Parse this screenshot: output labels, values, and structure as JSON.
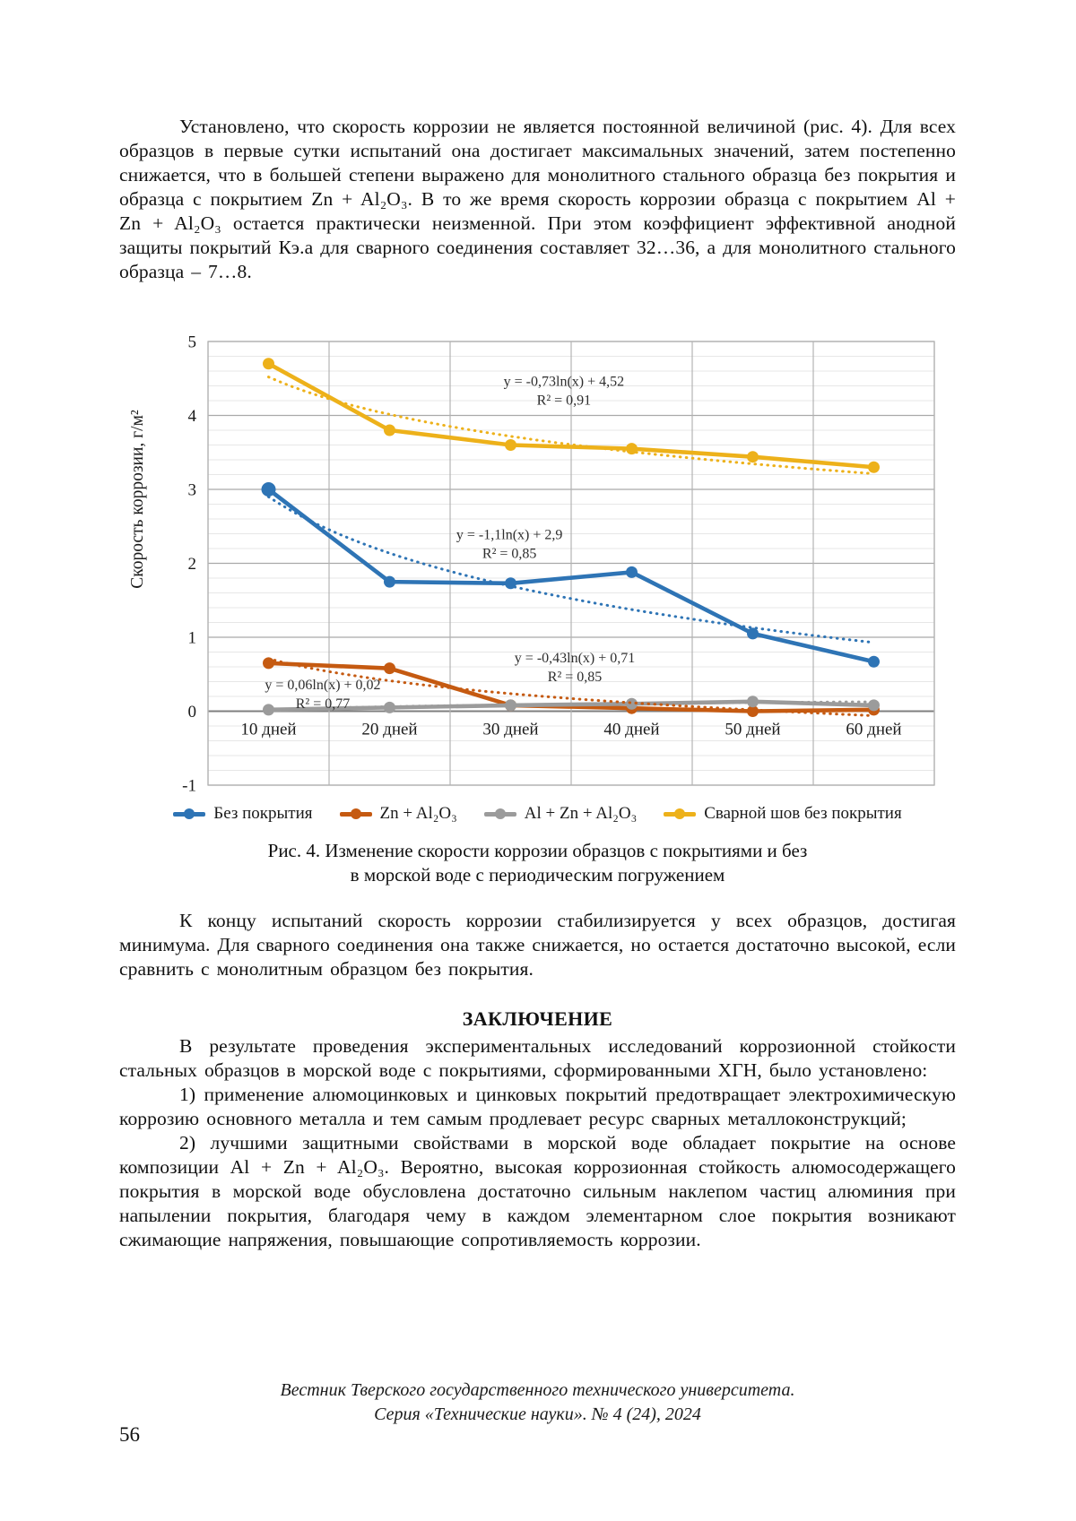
{
  "page": {
    "paragraph_1": "Установлено, что скорость коррозии не является постоянной величиной (рис. 4). Для всех образцов в первые сутки испытаний она достигает максимальных значений, затем постепенно снижается, что в большей степени выражено для монолитного стального образца без покрытия и образца с покрытием Zn + Al₂O₃. В то же время скорость коррозии образца с покрытием Al + Zn + Al₂O₃ остается практически неизменной. При этом коэффициент эффективной анодной защиты покрытий Кэ.а для сварного соединения составляет 32…36, а для монолитного стального образца – 7…8.",
    "figure_caption_line1": "Рис. 4. Изменение скорости коррозии образцов с покрытиями и без",
    "figure_caption_line2": "в морской воде с периодическим погружением",
    "paragraph_2": "К концу испытаний скорость коррозии стабилизируется у всех образцов, достигая минимума. Для сварного соединения она также снижается, но остается достаточно высокой, если сравнить с монолитным образцом без покрытия.",
    "conclusion_heading": "ЗАКЛЮЧЕНИЕ",
    "conclusion_intro": "В результате проведения экспериментальных исследований коррозионной стойкости стальных образцов в морской воде с покрытиями, сформированными ХГН, было установлено:",
    "conclusion_item_1": "1) применение алюмоцинковых и цинковых покрытий предотвращает электрохимическую коррозию основного металла и тем самым продлевает ресурс сварных металлоконструкций;",
    "conclusion_item_2": "2) лучшими защитными свойствами в морской воде обладает покрытие на основе композиции Al + Zn + Al₂O₃. Вероятно, высокая коррозионная стойкость алюмосодержащего покрытия в морской воде обусловлена достаточно сильным наклепом частиц алюминия при напылении покрытия, благодаря чему в каждом элементарном слое покрытия возникают сжимающие напряжения, повышающие сопротивляемость коррозии.",
    "footer_line1": "Вестник Тверского государственного технического университета.",
    "footer_line2": "Серия «Технические науки». № 4 (24), 2024",
    "page_number": "56"
  },
  "chart_data": {
    "type": "line",
    "title": "Изменение скорости коррозии образцов с покрытиями и без в морской воде с периодическим погружением",
    "ylabel": "Скорость коррозии, г/м²",
    "xlabel": "",
    "categories": [
      "10 дней",
      "20 дней",
      "30 дней",
      "40 дней",
      "50 дней",
      "60 дней"
    ],
    "ylim": [
      -1,
      5
    ],
    "y_major_step": 1,
    "y_minor_step": 0.2,
    "grid": true,
    "legend_position": "bottom",
    "colors": {
      "major_grid": "#a9a9a9",
      "minor_grid": "#e7e7e7",
      "zero_axis": "#7f7f7f",
      "frame": "#b3b3b3"
    },
    "series": [
      {
        "name": "Без покрытия",
        "color": "#2E74B5",
        "values": [
          3.0,
          1.75,
          1.73,
          1.88,
          1.05,
          0.67
        ],
        "trendline": {
          "type": "log",
          "a": -1.1,
          "b": 2.9,
          "equation": "y = -1,1ln(x) + 2,9",
          "r2_label": "R² = 0,85",
          "label_fx": 0.415,
          "label_value": 2.33
        }
      },
      {
        "name": "Zn + Al₂O₃",
        "color": "#C55A11",
        "values": [
          0.65,
          0.58,
          0.08,
          0.04,
          0.0,
          0.02
        ],
        "trendline": {
          "type": "log",
          "a": -0.43,
          "b": 0.71,
          "equation": "y = -0,43ln(x) + 0,71",
          "r2_label": "R² = 0,85",
          "label_fx": 0.505,
          "label_value": 0.66
        }
      },
      {
        "name": "Al + Zn + Al₂O₃",
        "color": "#9B9B9B",
        "values": [
          0.02,
          0.05,
          0.08,
          0.1,
          0.13,
          0.08
        ],
        "trendline": {
          "type": "log",
          "a": 0.06,
          "b": 0.02,
          "equation": "y = 0,06ln(x) + 0,02",
          "r2_label": "R² = 0,77",
          "label_fx": 0.158,
          "label_value": 0.3
        }
      },
      {
        "name": "Сварной шов без покрытия",
        "color": "#EDB11A",
        "values": [
          4.7,
          3.8,
          3.6,
          3.55,
          3.44,
          3.3
        ],
        "trendline": {
          "type": "log",
          "a": -0.73,
          "b": 4.52,
          "equation": "y = -0,73ln(x) + 4,52",
          "r2_label": "R² = 0,91",
          "label_fx": 0.49,
          "label_value": 4.4
        }
      }
    ]
  }
}
